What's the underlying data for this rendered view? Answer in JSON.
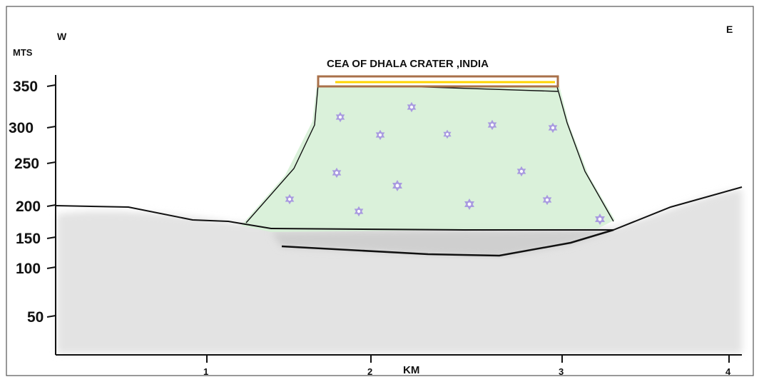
{
  "title": "CEA OF DHALA CRATER  ,INDIA",
  "directions": {
    "west": "W",
    "east": "E"
  },
  "y_axis": {
    "label": "MTS",
    "ticks": [
      350,
      300,
      250,
      200,
      150,
      100,
      50
    ]
  },
  "x_axis": {
    "label": "KM",
    "ticks": [
      1,
      2,
      3,
      4
    ]
  }
}
